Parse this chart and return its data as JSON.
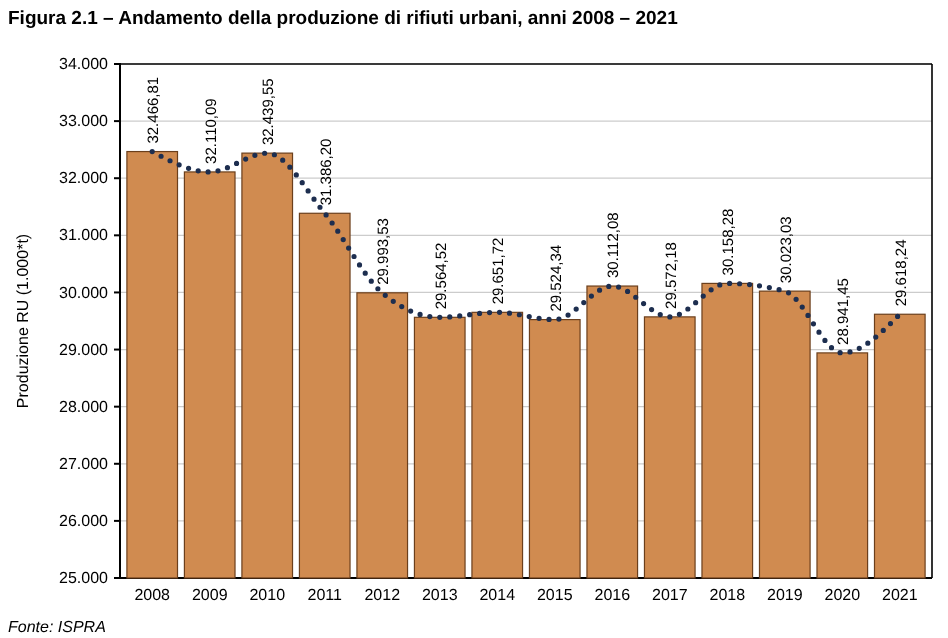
{
  "chart_data": {
    "type": "bar",
    "title": "Figura 2.1 – Andamento della produzione di rifiuti urbani, anni 2008 – 2021",
    "ylabel": "Produzione RU (1.000*t)",
    "annotations": [
      "Fonte: ISPRA"
    ],
    "categories": [
      "2008",
      "2009",
      "2010",
      "2011",
      "2012",
      "2013",
      "2014",
      "2015",
      "2016",
      "2017",
      "2018",
      "2019",
      "2020",
      "2021"
    ],
    "series": [
      {
        "color": "#d08b50",
        "values": [
          32466.81,
          32110.09,
          32439.55,
          31386.2,
          29993.53,
          29564.52,
          29651.72,
          29524.34,
          30112.08,
          29572.18,
          30158.28,
          30023.03,
          28941.45,
          29618.24
        ],
        "value_labels": [
          "32.466,81",
          "32.110,09",
          "32.439,55",
          "31.386,20",
          "29.993,53",
          "29.564,52",
          "29.651,72",
          "29.524,34",
          "30.112,08",
          "29.572,18",
          "30.158,28",
          "30.023,03",
          "28.941,45",
          "29.618,24"
        ]
      },
      {
        "type": "line",
        "color": "#1d2e4f",
        "line_style": "dotted",
        "values": [
          32466.81,
          32110.09,
          32439.55,
          31386.2,
          29993.53,
          29564.52,
          29651.72,
          29524.34,
          30112.08,
          29572.18,
          30158.28,
          30023.03,
          28941.45,
          29618.24
        ]
      }
    ],
    "ylim": [
      25000,
      34000
    ],
    "yticks": [
      {
        "value": 25000,
        "label": "25.000"
      },
      {
        "value": 26000,
        "label": "26.000"
      },
      {
        "value": 27000,
        "label": "27.000"
      },
      {
        "value": 28000,
        "label": "28.000"
      },
      {
        "value": 29000,
        "label": "29.000"
      },
      {
        "value": 30000,
        "label": "30.000"
      },
      {
        "value": 31000,
        "label": "31.000"
      },
      {
        "value": 32000,
        "label": "32.000"
      },
      {
        "value": 33000,
        "label": "33.000"
      },
      {
        "value": 34000,
        "label": "34.000"
      }
    ],
    "grid": "y",
    "marker": "none"
  }
}
